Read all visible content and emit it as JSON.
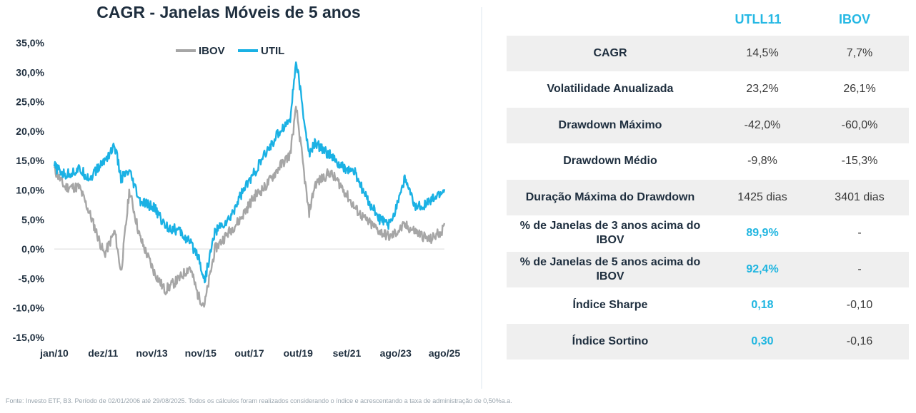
{
  "chart_data": {
    "type": "line",
    "title": "CAGR - Janelas Móveis de 5 anos",
    "y_ticks": [
      "35,0%",
      "30,0%",
      "25,0%",
      "20,0%",
      "15,0%",
      "10,0%",
      "5,0%",
      "0,0%",
      "-5,0%",
      "-10,0%",
      "-15,0%"
    ],
    "ylim": [
      -15,
      35
    ],
    "x_ticks": [
      "jan/10",
      "dez/11",
      "nov/13",
      "nov/15",
      "out/17",
      "out/19",
      "set/21",
      "ago/23",
      "ago/25"
    ],
    "x_range": [
      "2010-01",
      "2025-08"
    ],
    "legend_position": "top",
    "series": [
      {
        "name": "IBOV",
        "color": "#a6a6a6",
        "points": [
          [
            "2010-01",
            13.5
          ],
          [
            "2010-06",
            10.5
          ],
          [
            "2011-01",
            10.5
          ],
          [
            "2011-06",
            6.0
          ],
          [
            "2012-01",
            -1.0
          ],
          [
            "2012-06",
            3.0
          ],
          [
            "2012-09",
            -4.0
          ],
          [
            "2013-01",
            10.0
          ],
          [
            "2013-06",
            2.0
          ],
          [
            "2014-01",
            -4.0
          ],
          [
            "2014-06",
            -7.0
          ],
          [
            "2015-01",
            -5.0
          ],
          [
            "2015-06",
            -3.0
          ],
          [
            "2015-10",
            -8.0
          ],
          [
            "2016-01",
            -9.5
          ],
          [
            "2016-06",
            0.0
          ],
          [
            "2017-01",
            3.0
          ],
          [
            "2017-06",
            5.0
          ],
          [
            "2018-01",
            9.0
          ],
          [
            "2018-06",
            10.5
          ],
          [
            "2019-01",
            14.0
          ],
          [
            "2019-06",
            16.0
          ],
          [
            "2019-09",
            24.0
          ],
          [
            "2020-03",
            6.0
          ],
          [
            "2020-06",
            11.0
          ],
          [
            "2021-01",
            13.0
          ],
          [
            "2021-06",
            11.0
          ],
          [
            "2022-01",
            7.0
          ],
          [
            "2022-06",
            5.0
          ],
          [
            "2023-01",
            3.0
          ],
          [
            "2023-06",
            2.0
          ],
          [
            "2024-01",
            4.0
          ],
          [
            "2024-06",
            3.0
          ],
          [
            "2025-01",
            1.5
          ],
          [
            "2025-08",
            3.5
          ]
        ]
      },
      {
        "name": "UTIL",
        "color": "#1ab1e4",
        "points": [
          [
            "2010-01",
            14.0
          ],
          [
            "2010-06",
            12.5
          ],
          [
            "2011-01",
            13.5
          ],
          [
            "2011-06",
            12.0
          ],
          [
            "2012-01",
            15.0
          ],
          [
            "2012-06",
            17.5
          ],
          [
            "2012-09",
            12.0
          ],
          [
            "2013-01",
            13.0
          ],
          [
            "2013-06",
            8.0
          ],
          [
            "2014-01",
            7.0
          ],
          [
            "2014-06",
            4.0
          ],
          [
            "2015-01",
            3.0
          ],
          [
            "2015-06",
            1.0
          ],
          [
            "2015-10",
            -1.0
          ],
          [
            "2016-01",
            -5.5
          ],
          [
            "2016-06",
            3.0
          ],
          [
            "2017-01",
            5.0
          ],
          [
            "2017-06",
            9.0
          ],
          [
            "2018-01",
            13.0
          ],
          [
            "2018-06",
            16.0
          ],
          [
            "2019-01",
            20.0
          ],
          [
            "2019-06",
            22.0
          ],
          [
            "2019-09",
            32.0
          ],
          [
            "2020-03",
            16.0
          ],
          [
            "2020-06",
            18.0
          ],
          [
            "2021-01",
            16.0
          ],
          [
            "2021-06",
            14.0
          ],
          [
            "2022-01",
            13.0
          ],
          [
            "2022-06",
            9.0
          ],
          [
            "2023-01",
            5.0
          ],
          [
            "2023-06",
            4.0
          ],
          [
            "2024-01",
            12.0
          ],
          [
            "2024-06",
            7.0
          ],
          [
            "2025-01",
            8.0
          ],
          [
            "2025-08",
            10.0
          ]
        ]
      }
    ]
  },
  "table": {
    "headers": [
      "UTLL11",
      "IBOV"
    ],
    "rows": [
      {
        "label": "CAGR",
        "utll11": "14,5%",
        "ibov": "7,7%"
      },
      {
        "label": "Volatilidade Anualizada",
        "utll11": "23,2%",
        "ibov": "26,1%"
      },
      {
        "label": "Drawdown Máximo",
        "utll11": "-42,0%",
        "ibov": "-60,0%"
      },
      {
        "label": "Drawdown Médio",
        "utll11": "-9,8%",
        "ibov": "-15,3%"
      },
      {
        "label": "Duração Máxima do Drawdown",
        "utll11": "1425 dias",
        "ibov": "3401 dias"
      },
      {
        "label": "% de Janelas de 3 anos acima do IBOV",
        "utll11": "89,9%",
        "ibov": "-"
      },
      {
        "label": "% de Janelas de 5 anos acima do IBOV",
        "utll11": "92,4%",
        "ibov": "-"
      },
      {
        "label": "Índice Sharpe",
        "utll11": "0,18",
        "ibov": "-0,10"
      },
      {
        "label": "Índice Sortino",
        "utll11": "0,30",
        "ibov": "-0,16"
      }
    ]
  },
  "footnote": "Fonte: Investo ETF, B3. Período de 02/01/2006 até 29/08/2025. Todos os cálculos foram realizados considerando o índice e acrescentando a taxa de administração de 0,50%a.a."
}
